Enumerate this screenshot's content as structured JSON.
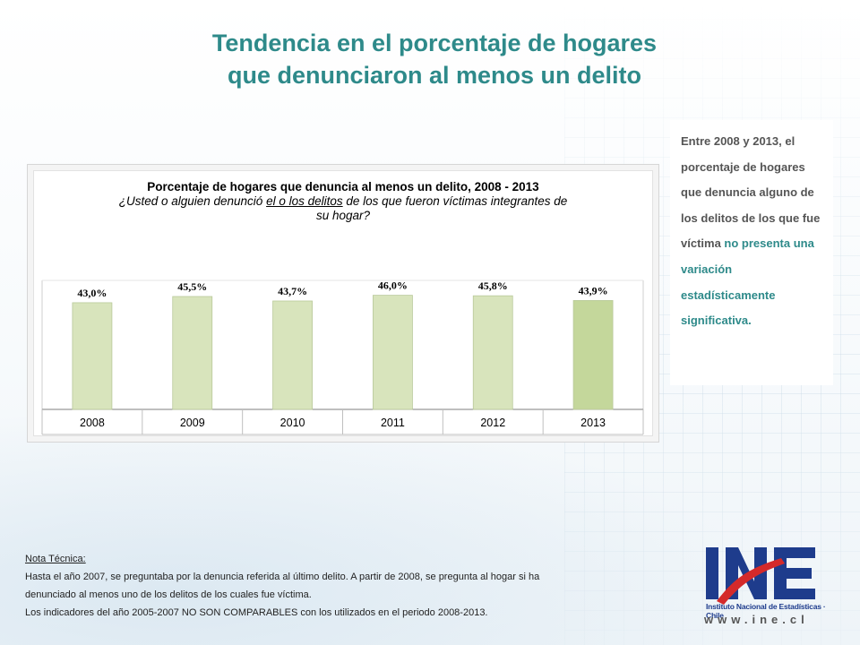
{
  "title_line1": "Tendencia en el porcentaje de hogares",
  "title_line2": "que denunciaron al menos un delito",
  "chart_data": {
    "type": "bar",
    "title": "Porcentaje de hogares que denuncia al menos un delito, 2008 - 2013",
    "subtitle_pre": "¿Usted o alguien denunció ",
    "subtitle_u": "el o los delitos",
    "subtitle_post": " de los que fueron víctimas integrantes de",
    "subtitle_line2": "su hogar?",
    "categories": [
      "2008",
      "2009",
      "2010",
      "2011",
      "2012",
      "2013"
    ],
    "values": [
      43.0,
      45.5,
      43.7,
      46.0,
      45.8,
      43.9
    ],
    "labels": [
      "43,0%",
      "45,5%",
      "43,7%",
      "46,0%",
      "45,8%",
      "43,9%"
    ],
    "ylim": [
      0,
      52
    ],
    "colors": {
      "bar": "#d8e4bc",
      "bar_last": "#c4d79b",
      "bar_edge": "#b9c99a"
    },
    "grid": false
  },
  "side_text": {
    "normal": "Entre 2008 y 2013, el porcentaje de hogares que denuncia alguno de los delitos de los que fue víctima ",
    "highlight": "no presenta una variación estadísticamente significativa."
  },
  "note": {
    "title": "Nota Técnica:",
    "line1": "Hasta el año 2007,  se preguntaba por la denuncia referida al último delito. A partir de 2008, se pregunta al hogar si ha",
    "line2": "denunciado al menos uno de los delitos de los cuales fue víctima.",
    "line3": "Los indicadores del año 2005-2007  NO SON COMPARABLES  con los utilizados en el periodo 2008-2013."
  },
  "logo": {
    "letters": "INE",
    "subtitle": "Instituto Nacional de Estadísticas · Chile",
    "url": "www.ine.cl"
  }
}
